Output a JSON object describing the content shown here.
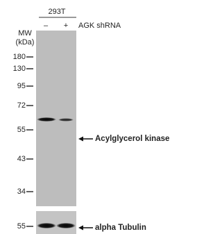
{
  "header": {
    "cell_line": "293T",
    "lanes": [
      "–",
      "+"
    ],
    "treatment": "AGK shRNA"
  },
  "mw_label": [
    "MW",
    "(kDa)"
  ],
  "markers": {
    "main": [
      "180",
      "130",
      "95",
      "72",
      "55",
      "43",
      "34"
    ],
    "lower": [
      "55"
    ]
  },
  "bands": [
    "Acylglycerol kinase",
    "alpha Tubulin"
  ]
}
